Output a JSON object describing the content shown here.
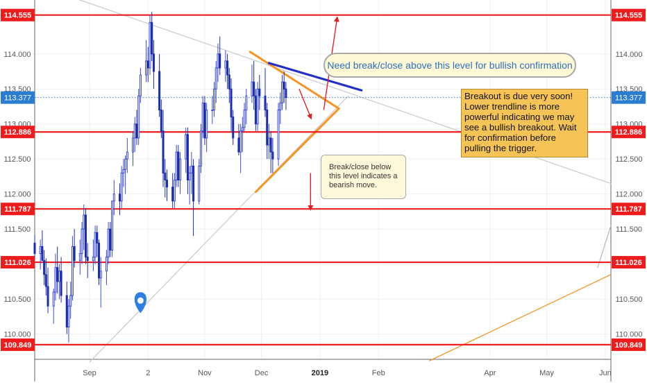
{
  "chart_data": {
    "type": "candlestick",
    "title": "",
    "xlabel": "",
    "ylabel": "",
    "ylim": [
      109.64,
      114.77
    ],
    "y_ticks": [
      110.0,
      110.5,
      111.0,
      111.5,
      112.0,
      112.5,
      113.0,
      113.5,
      114.0
    ],
    "y_tick_labels": [
      "110.000",
      "110.500",
      "111.000",
      "111.500",
      "112.000",
      "112.500",
      "113.000",
      "113.500",
      "114.000"
    ],
    "x_ticks": [
      {
        "label": "Sep",
        "date": "2018-09-01"
      },
      {
        "label": "2",
        "date": "2018-10-02"
      },
      {
        "label": "Nov",
        "date": "2018-11-01"
      },
      {
        "label": "Dec",
        "date": "2018-12-01"
      },
      {
        "label": "2019",
        "date": "2019-01-01",
        "bold": true
      },
      {
        "label": "Feb",
        "date": "2019-02-01"
      },
      {
        "label": "Apr",
        "date": "2019-04-01"
      },
      {
        "label": "May",
        "date": "2019-05-01"
      },
      {
        "label": "Jun",
        "date": "2019-06-01"
      }
    ],
    "xlim": [
      "2018-08-03",
      "2019-06-04"
    ],
    "grid": true,
    "current_price": {
      "value": 113.377,
      "label": "113.377"
    },
    "horizontal_levels": [
      {
        "value": 114.555,
        "label": "114.555"
      },
      {
        "value": 112.886,
        "label": "112.886"
      },
      {
        "value": 111.787,
        "label": "111.787"
      },
      {
        "value": 111.026,
        "label": "111.026"
      },
      {
        "value": 109.849,
        "label": "109.849"
      }
    ],
    "series": [
      {
        "type": "candlestick",
        "columns": [
          "date",
          "open",
          "high",
          "low",
          "close"
        ],
        "data": [
          [
            "2018-08-03",
            111.3,
            111.42,
            111.08,
            111.15
          ],
          [
            "2018-08-06",
            111.15,
            111.35,
            110.92,
            111.25
          ],
          [
            "2018-08-07",
            111.25,
            111.48,
            111.05,
            111.05
          ],
          [
            "2018-08-08",
            111.05,
            111.2,
            110.7,
            110.85
          ],
          [
            "2018-08-09",
            110.85,
            111.08,
            110.55,
            110.68
          ],
          [
            "2018-08-10",
            110.68,
            110.95,
            110.3,
            110.4
          ],
          [
            "2018-08-13",
            110.4,
            110.65,
            110.15,
            110.6
          ],
          [
            "2018-08-14",
            110.6,
            111.15,
            110.48,
            110.95
          ],
          [
            "2018-08-15",
            110.95,
            111.25,
            110.58,
            110.75
          ],
          [
            "2018-08-16",
            110.75,
            111.0,
            110.5,
            110.9
          ],
          [
            "2018-08-17",
            110.9,
            111.1,
            110.45,
            110.55
          ],
          [
            "2018-08-20",
            110.55,
            110.75,
            110.0,
            110.1
          ],
          [
            "2018-08-21",
            110.1,
            110.5,
            109.88,
            110.4
          ],
          [
            "2018-08-22",
            110.4,
            110.75,
            110.22,
            110.55
          ],
          [
            "2018-08-23",
            110.55,
            111.4,
            110.48,
            111.25
          ],
          [
            "2018-08-24",
            111.25,
            111.5,
            110.95,
            111.05
          ],
          [
            "2018-08-27",
            111.05,
            111.35,
            110.85,
            111.15
          ],
          [
            "2018-08-28",
            111.15,
            111.6,
            111.0,
            111.5
          ],
          [
            "2018-08-29",
            111.5,
            111.85,
            111.2,
            111.7
          ],
          [
            "2018-08-30",
            111.7,
            111.8,
            111.0,
            111.1
          ],
          [
            "2018-08-31",
            111.1,
            111.3,
            110.8,
            111.05
          ],
          [
            "2018-09-03",
            111.05,
            111.35,
            110.9,
            111.1
          ],
          [
            "2018-09-04",
            111.1,
            111.55,
            111.0,
            111.45
          ],
          [
            "2018-09-05",
            111.45,
            111.55,
            111.1,
            111.3
          ],
          [
            "2018-09-06",
            111.3,
            111.35,
            110.7,
            110.8
          ],
          [
            "2018-09-07",
            110.8,
            111.1,
            110.38,
            110.9
          ],
          [
            "2018-09-10",
            110.9,
            111.2,
            110.7,
            111.1
          ],
          [
            "2018-09-11",
            111.1,
            111.6,
            111.0,
            111.5
          ],
          [
            "2018-09-12",
            111.5,
            111.6,
            111.1,
            111.2
          ],
          [
            "2018-09-13",
            111.2,
            111.9,
            111.1,
            111.9
          ],
          [
            "2018-09-14",
            111.9,
            112.2,
            111.7,
            112.0
          ],
          [
            "2018-09-17",
            112.0,
            112.15,
            111.7,
            111.9
          ],
          [
            "2018-09-18",
            111.9,
            112.4,
            111.8,
            112.3
          ],
          [
            "2018-09-19",
            112.3,
            112.5,
            112.1,
            112.35
          ],
          [
            "2018-09-20",
            112.35,
            112.55,
            112.0,
            112.5
          ],
          [
            "2018-09-21",
            112.5,
            112.8,
            112.3,
            112.6
          ],
          [
            "2018-09-24",
            112.6,
            112.9,
            112.4,
            112.8
          ],
          [
            "2018-09-25",
            112.8,
            113.1,
            112.6,
            113.0
          ],
          [
            "2018-09-26",
            113.0,
            113.2,
            112.7,
            112.8
          ],
          [
            "2018-09-27",
            112.8,
            113.5,
            112.7,
            113.4
          ],
          [
            "2018-09-28",
            113.4,
            113.8,
            113.3,
            113.7
          ],
          [
            "2018-10-01",
            113.7,
            114.2,
            113.6,
            113.9
          ],
          [
            "2018-10-02",
            113.9,
            114.1,
            113.6,
            113.8
          ],
          [
            "2018-10-03",
            113.8,
            114.55,
            113.7,
            114.45
          ],
          [
            "2018-10-04",
            114.45,
            114.6,
            113.9,
            114.0
          ],
          [
            "2018-10-05",
            114.0,
            114.2,
            113.5,
            113.75
          ],
          [
            "2018-10-08",
            113.75,
            114.0,
            113.1,
            113.2
          ],
          [
            "2018-10-09",
            113.2,
            113.35,
            112.8,
            112.9
          ],
          [
            "2018-10-10",
            112.9,
            113.2,
            112.1,
            112.3
          ],
          [
            "2018-10-11",
            112.3,
            112.5,
            111.95,
            112.2
          ],
          [
            "2018-10-12",
            112.2,
            112.35,
            111.9,
            112.1
          ],
          [
            "2018-10-15",
            112.1,
            112.3,
            111.8,
            111.9
          ],
          [
            "2018-10-16",
            111.9,
            112.3,
            111.8,
            112.2
          ],
          [
            "2018-10-17",
            112.2,
            112.7,
            112.1,
            112.6
          ],
          [
            "2018-10-18",
            112.6,
            112.7,
            112.1,
            112.2
          ],
          [
            "2018-10-19",
            112.2,
            112.6,
            112.0,
            112.5
          ],
          [
            "2018-10-22",
            112.5,
            112.95,
            112.3,
            112.85
          ],
          [
            "2018-10-23",
            112.85,
            112.95,
            112.0,
            112.2
          ],
          [
            "2018-10-24",
            112.2,
            112.4,
            111.85,
            112.3
          ],
          [
            "2018-10-25",
            112.3,
            112.6,
            112.0,
            112.4
          ],
          [
            "2018-10-26",
            112.4,
            112.5,
            111.4,
            111.9
          ],
          [
            "2018-10-29",
            111.9,
            112.5,
            111.85,
            112.4
          ],
          [
            "2018-10-30",
            112.4,
            113.0,
            112.3,
            112.9
          ],
          [
            "2018-10-31",
            112.9,
            113.4,
            112.8,
            113.3
          ],
          [
            "2018-11-01",
            113.3,
            113.4,
            112.7,
            112.8
          ],
          [
            "2018-11-02",
            112.8,
            113.3,
            112.6,
            113.2
          ],
          [
            "2018-11-05",
            113.2,
            113.4,
            113.0,
            113.2
          ],
          [
            "2018-11-06",
            113.2,
            113.6,
            113.1,
            113.5
          ],
          [
            "2018-11-07",
            113.5,
            113.9,
            113.3,
            113.8
          ],
          [
            "2018-11-08",
            113.8,
            114.15,
            113.6,
            114.0
          ],
          [
            "2018-11-09",
            114.0,
            114.25,
            113.7,
            113.8
          ],
          [
            "2018-11-12",
            113.8,
            114.05,
            113.6,
            113.9
          ],
          [
            "2018-11-13",
            113.9,
            114.0,
            113.5,
            113.7
          ],
          [
            "2018-11-14",
            113.7,
            113.8,
            113.3,
            113.5
          ],
          [
            "2018-11-15",
            113.5,
            113.65,
            112.9,
            113.1
          ],
          [
            "2018-11-16",
            113.1,
            113.2,
            112.7,
            112.8
          ],
          [
            "2018-11-19",
            112.8,
            113.0,
            112.55,
            112.6
          ],
          [
            "2018-11-20",
            112.6,
            113.0,
            112.3,
            112.9
          ],
          [
            "2018-11-21",
            112.9,
            113.1,
            112.6,
            112.95
          ],
          [
            "2018-11-22",
            112.95,
            113.3,
            112.9,
            113.2
          ],
          [
            "2018-11-23",
            113.2,
            113.5,
            113.0,
            113.4
          ],
          [
            "2018-11-26",
            113.4,
            113.85,
            113.3,
            113.6
          ],
          [
            "2018-11-27",
            113.6,
            113.9,
            113.2,
            113.4
          ],
          [
            "2018-11-28",
            113.4,
            113.5,
            112.9,
            113.0
          ],
          [
            "2018-11-29",
            113.0,
            113.6,
            112.9,
            113.5
          ],
          [
            "2018-11-30",
            113.5,
            113.7,
            113.2,
            113.4
          ],
          [
            "2018-12-03",
            113.4,
            113.8,
            113.1,
            113.2
          ],
          [
            "2018-12-04",
            113.2,
            113.3,
            112.5,
            112.7
          ],
          [
            "2018-12-05",
            112.7,
            113.0,
            112.5,
            112.8
          ],
          [
            "2018-12-06",
            112.8,
            112.9,
            112.3,
            112.6
          ],
          [
            "2018-12-07",
            112.6,
            112.8,
            112.3,
            112.5
          ],
          [
            "2018-12-10",
            112.5,
            113.3,
            112.4,
            113.2
          ],
          [
            "2018-12-11",
            113.2,
            113.45,
            113.0,
            113.3
          ],
          [
            "2018-12-12",
            113.3,
            113.7,
            113.2,
            113.6
          ],
          [
            "2018-12-13",
            113.6,
            113.75,
            113.3,
            113.5
          ],
          [
            "2018-12-14",
            113.5,
            113.6,
            113.2,
            113.377
          ]
        ]
      }
    ]
  },
  "annotations": {
    "bullish_note": "Need break/close above this level for bullish confirmation",
    "breakout_note": "Breakout is due very soon! Lower trendline is more powerful indicating we may see a bullish breakout. Wait for confirmation before pulling the trigger.",
    "bearish_note": "Break/close below this level indicates a bearish move."
  },
  "colors": {
    "up_candle": "#3b4bd8",
    "down_candle": "#1a2db0",
    "level_line": "#ee1c1c",
    "trendline": "#f7931e",
    "resistance": "#2130c8",
    "arrows": "#e02020",
    "marker": "#2f7de1"
  }
}
